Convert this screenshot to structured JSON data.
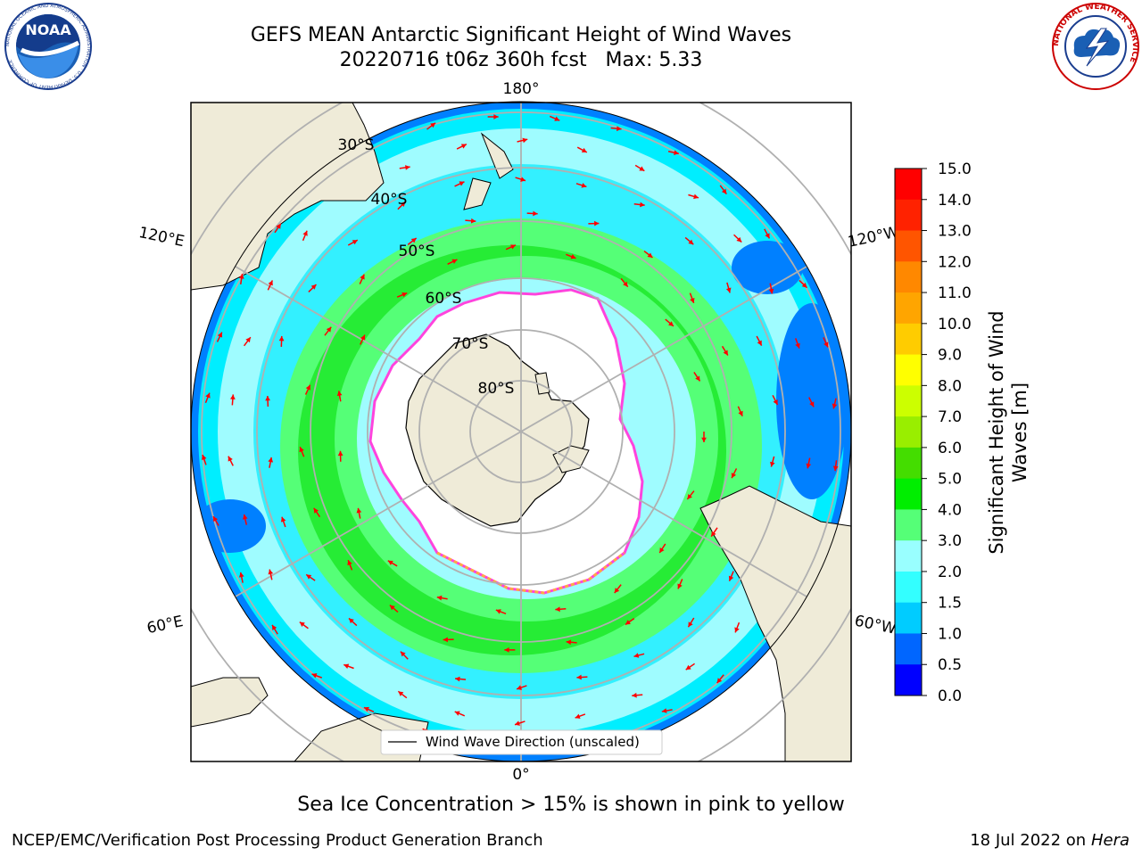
{
  "header": {
    "title": "GEFS MEAN Antarctic Significant Height of Wind Waves",
    "subtitle": "20220716 t06z 360h fcst   Max: 5.33"
  },
  "logos": {
    "left": {
      "text": "NOAA",
      "ring_text": "NATIONAL OCEANIC AND ATMOSPHERIC ADMINISTRATION · U.S. DEPARTMENT OF COMMERCE"
    },
    "right": {
      "ring_text": "NATIONAL WEATHER SERVICE"
    }
  },
  "map": {
    "longitude_labels": [
      "180°",
      "120°E",
      "120°W",
      "60°E",
      "60°W",
      "0°"
    ],
    "latitude_labels": [
      "30°S",
      "40°S",
      "50°S",
      "60°S",
      "70°S",
      "80°S"
    ],
    "legend_label": "Wind Wave Direction (unscaled)",
    "colors": {
      "land": "#efebd8",
      "ice": "#ffffff",
      "ice_edge": "#ff44dd",
      "ocean_low": "#0080ff",
      "ocean_mid": "#00eeff",
      "ocean_light": "#9ffcff",
      "band_green": "#55ff77",
      "band_bright": "#00dd00",
      "arrow": "#ff0000"
    }
  },
  "colorbar": {
    "label_line1": "Significant Height of Wind",
    "label_line2": "Waves [m]",
    "ticks": [
      "0.0",
      "0.5",
      "1.0",
      "1.5",
      "2.0",
      "3.0",
      "4.0",
      "5.0",
      "6.0",
      "7.0",
      "8.0",
      "9.0",
      "10.0",
      "11.0",
      "12.0",
      "13.0",
      "14.0",
      "15.0"
    ],
    "colors": [
      "#0000ff",
      "#0066ff",
      "#00ccff",
      "#33ffff",
      "#99ffff",
      "#55ff77",
      "#00ee00",
      "#44dd00",
      "#99ee00",
      "#ccff00",
      "#ffff00",
      "#ffcc00",
      "#ffa500",
      "#ff8800",
      "#ff5500",
      "#ff2200",
      "#ff0000"
    ]
  },
  "note": "Sea Ice Concentration > 15% is shown in pink to yellow",
  "footer": {
    "left": "NCEP/EMC/Verification Post Processing Product Generation Branch",
    "right_prefix": "18 Jul 2022 on",
    "right_host": "Hera"
  }
}
